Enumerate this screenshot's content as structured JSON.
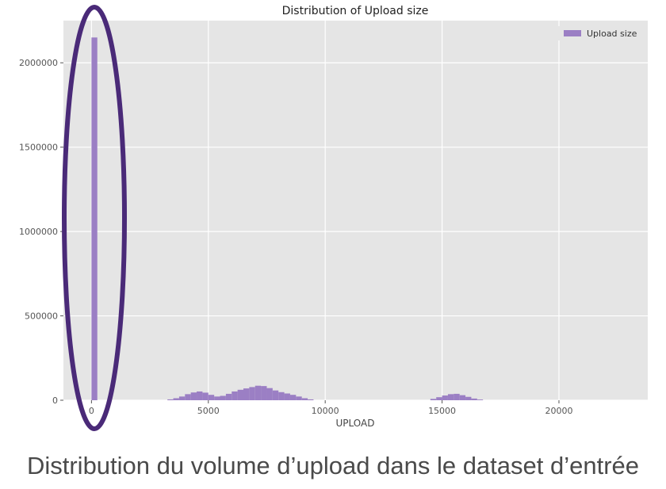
{
  "colors": {
    "bar": "#9b7fc4",
    "plot_bg": "#e5e5e5",
    "grid": "#ffffff",
    "highlight": "#4a2a78"
  },
  "chart_data": {
    "type": "bar",
    "title": "Distribution of Upload size",
    "xlabel": "UPLOAD",
    "ylabel": "",
    "xlim": [
      -1200,
      23800
    ],
    "ylim": [
      0,
      2250000
    ],
    "x_ticks": [
      0,
      5000,
      10000,
      15000,
      20000
    ],
    "x_tick_labels": [
      "0",
      "5000",
      "10000",
      "15000",
      "20000"
    ],
    "y_ticks": [
      0,
      500000,
      1000000,
      1500000,
      2000000
    ],
    "y_tick_labels": [
      "0",
      "500000",
      "1000000",
      "1500000",
      "2000000"
    ],
    "grid": true,
    "legend_position": "top-right",
    "bin_width": 250,
    "series": [
      {
        "name": "Upload size",
        "x": [
          0,
          3250,
          3500,
          3750,
          4000,
          4250,
          4500,
          4750,
          5000,
          5250,
          5500,
          5750,
          6000,
          6250,
          6500,
          6750,
          7000,
          7250,
          7500,
          7750,
          8000,
          8250,
          8500,
          8750,
          9000,
          9250,
          14500,
          14750,
          15000,
          15250,
          15500,
          15750,
          16000,
          16250,
          16500
        ],
        "values": [
          2150000,
          5000,
          12000,
          22000,
          36000,
          46000,
          52000,
          45000,
          32000,
          22000,
          26000,
          38000,
          52000,
          62000,
          70000,
          78000,
          86000,
          84000,
          72000,
          58000,
          48000,
          40000,
          32000,
          22000,
          12000,
          5000,
          8000,
          18000,
          28000,
          36000,
          38000,
          30000,
          20000,
          10000,
          4000
        ]
      }
    ]
  },
  "caption": "Distribution du volume d’upload dans le dataset d’entrée"
}
